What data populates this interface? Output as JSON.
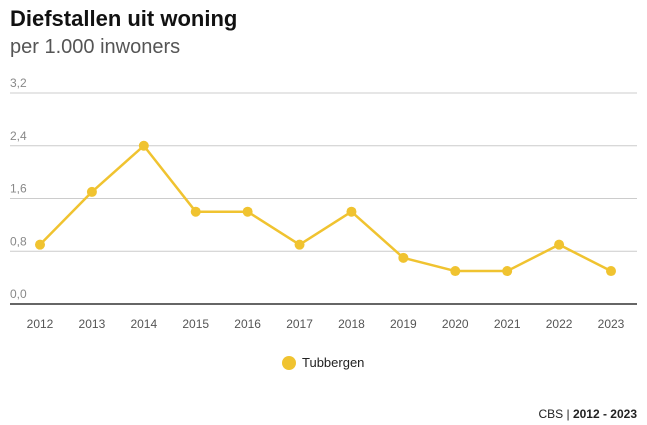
{
  "header": {
    "title": "Diefstallen uit woning",
    "subtitle": "per 1.000 inwoners"
  },
  "chart_data": {
    "type": "line",
    "categories": [
      "2012",
      "2013",
      "2014",
      "2015",
      "2016",
      "2017",
      "2018",
      "2019",
      "2020",
      "2021",
      "2022",
      "2023"
    ],
    "series": [
      {
        "name": "Tubbergen",
        "values": [
          0.9,
          1.7,
          2.4,
          1.4,
          1.4,
          0.9,
          1.4,
          0.7,
          0.5,
          0.5,
          0.9,
          0.5
        ],
        "color": "#f0c330"
      }
    ],
    "ylim": [
      0,
      3.2
    ],
    "yticks": [
      "0,0",
      "0,8",
      "1,6",
      "2,4",
      "3,2"
    ],
    "ytick_values": [
      0,
      0.8,
      1.6,
      2.4,
      3.2
    ],
    "grid": true,
    "legend_position": "bottom-center"
  },
  "legend": {
    "label": "Tubbergen",
    "color": "#f0c330"
  },
  "footer": {
    "source": "CBS",
    "separator": "|",
    "period": "2012 - 2023"
  }
}
